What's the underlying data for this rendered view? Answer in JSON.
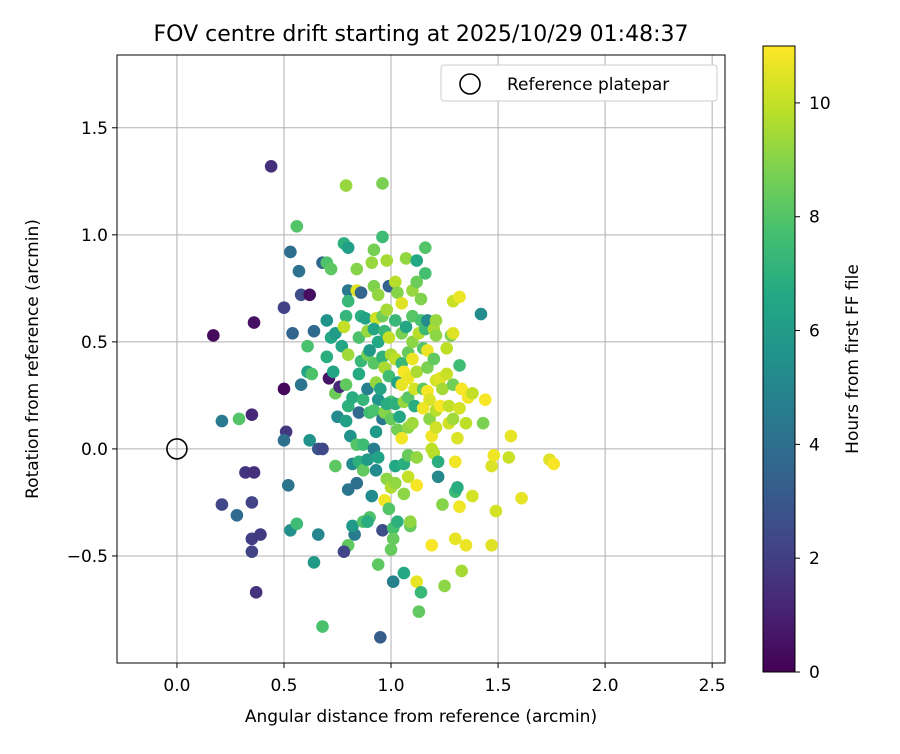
{
  "chart_data": {
    "type": "scatter",
    "title": "FOV centre drift starting at 2025/10/29 01:48:37",
    "xlabel": "Angular distance from reference (arcmin)",
    "ylabel": "Rotation from reference (arcmin)",
    "xlim": [
      -0.28,
      2.56
    ],
    "ylim": [
      -1.0,
      1.84
    ],
    "grid": true,
    "x_ticks": [
      0.0,
      0.5,
      1.0,
      1.5,
      2.0,
      2.5
    ],
    "x_tick_labels": [
      "0.0",
      "0.5",
      "1.0",
      "1.5",
      "2.0",
      "2.5"
    ],
    "y_ticks": [
      -0.5,
      0.0,
      0.5,
      1.0,
      1.5
    ],
    "y_tick_labels": [
      "−0.5",
      "0.0",
      "0.5",
      "1.0",
      "1.5"
    ],
    "legend": {
      "position": "top-right",
      "entries": [
        {
          "label": "Reference platepar",
          "marker": "open-circle"
        }
      ]
    },
    "reference_point": {
      "x": 0.0,
      "y": 0.0
    },
    "colorbar": {
      "label": "Hours from first FF file",
      "colormap": "viridis",
      "range": [
        0,
        11
      ],
      "ticks": [
        0,
        2,
        4,
        6,
        8,
        10
      ],
      "tick_labels": [
        "0",
        "2",
        "4",
        "6",
        "8",
        "10"
      ]
    },
    "points": [
      {
        "x": 0.44,
        "y": 1.32,
        "c": 1.5
      },
      {
        "x": 0.17,
        "y": 0.53,
        "c": 0.3
      },
      {
        "x": 0.36,
        "y": 0.59,
        "c": 0.5
      },
      {
        "x": 0.21,
        "y": 0.13,
        "c": 4.5
      },
      {
        "x": 0.29,
        "y": 0.14,
        "c": 8.0
      },
      {
        "x": 0.35,
        "y": 0.16,
        "c": 1.2
      },
      {
        "x": 0.32,
        "y": -0.11,
        "c": 1.7
      },
      {
        "x": 0.36,
        "y": -0.11,
        "c": 1.5
      },
      {
        "x": 0.21,
        "y": -0.26,
        "c": 2.3
      },
      {
        "x": 0.28,
        "y": -0.31,
        "c": 3.8
      },
      {
        "x": 0.35,
        "y": -0.25,
        "c": 2.2
      },
      {
        "x": 0.35,
        "y": -0.42,
        "c": 2.0
      },
      {
        "x": 0.39,
        "y": -0.4,
        "c": 1.9
      },
      {
        "x": 0.35,
        "y": -0.48,
        "c": 2.2
      },
      {
        "x": 0.37,
        "y": -0.67,
        "c": 1.6
      },
      {
        "x": 0.5,
        "y": 0.28,
        "c": 0.2
      },
      {
        "x": 0.5,
        "y": 0.66,
        "c": 2.1
      },
      {
        "x": 0.51,
        "y": 0.08,
        "c": 1.8
      },
      {
        "x": 0.5,
        "y": 0.04,
        "c": 4.0
      },
      {
        "x": 0.52,
        "y": -0.17,
        "c": 4.2
      },
      {
        "x": 0.53,
        "y": -0.38,
        "c": 5.4
      },
      {
        "x": 0.56,
        "y": -0.35,
        "c": 7.5
      },
      {
        "x": 0.53,
        "y": 0.92,
        "c": 3.9
      },
      {
        "x": 0.56,
        "y": 1.04,
        "c": 8.0
      },
      {
        "x": 0.57,
        "y": 0.83,
        "c": 4.1
      },
      {
        "x": 0.54,
        "y": 0.54,
        "c": 3.5
      },
      {
        "x": 0.58,
        "y": 0.72,
        "c": 2.6
      },
      {
        "x": 0.61,
        "y": 0.48,
        "c": 7.8
      },
      {
        "x": 0.58,
        "y": 0.3,
        "c": 4.3
      },
      {
        "x": 0.61,
        "y": 0.36,
        "c": 6.3
      },
      {
        "x": 0.63,
        "y": 0.35,
        "c": 7.9
      },
      {
        "x": 0.62,
        "y": 0.72,
        "c": 0.4
      },
      {
        "x": 0.64,
        "y": 0.55,
        "c": 3.8
      },
      {
        "x": 0.62,
        "y": 0.04,
        "c": 5.6
      },
      {
        "x": 0.66,
        "y": 0.0,
        "c": 2.9
      },
      {
        "x": 0.68,
        "y": 0.0,
        "c": 2.4
      },
      {
        "x": 0.66,
        "y": -0.4,
        "c": 5.0
      },
      {
        "x": 0.64,
        "y": -0.53,
        "c": 6.0
      },
      {
        "x": 0.68,
        "y": -0.83,
        "c": 7.8
      },
      {
        "x": 0.68,
        "y": 0.87,
        "c": 3.6
      },
      {
        "x": 0.7,
        "y": 0.87,
        "c": 7.9
      },
      {
        "x": 0.72,
        "y": 0.84,
        "c": 8.2
      },
      {
        "x": 0.7,
        "y": 0.6,
        "c": 5.6
      },
      {
        "x": 0.72,
        "y": 0.52,
        "c": 6.6
      },
      {
        "x": 0.74,
        "y": 0.54,
        "c": 6.0
      },
      {
        "x": 0.7,
        "y": 0.43,
        "c": 6.9
      },
      {
        "x": 0.71,
        "y": 0.33,
        "c": 0.6
      },
      {
        "x": 0.73,
        "y": 0.36,
        "c": 6.4
      },
      {
        "x": 0.74,
        "y": 0.26,
        "c": 8.5
      },
      {
        "x": 0.76,
        "y": 0.29,
        "c": 1.3
      },
      {
        "x": 0.75,
        "y": 0.15,
        "c": 5.2
      },
      {
        "x": 0.74,
        "y": -0.08,
        "c": 8.2
      },
      {
        "x": 0.78,
        "y": 0.96,
        "c": 7.0
      },
      {
        "x": 0.8,
        "y": 0.94,
        "c": 6.2
      },
      {
        "x": 0.79,
        "y": 1.23,
        "c": 9.3
      },
      {
        "x": 0.8,
        "y": 0.74,
        "c": 4.4
      },
      {
        "x": 0.8,
        "y": 0.69,
        "c": 7.3
      },
      {
        "x": 0.79,
        "y": 0.62,
        "c": 7.2
      },
      {
        "x": 0.78,
        "y": 0.57,
        "c": 10.0
      },
      {
        "x": 0.77,
        "y": 0.48,
        "c": 6.5
      },
      {
        "x": 0.8,
        "y": 0.44,
        "c": 9.4
      },
      {
        "x": 0.79,
        "y": 0.3,
        "c": 8.3
      },
      {
        "x": 0.8,
        "y": 0.2,
        "c": 7.0
      },
      {
        "x": 0.82,
        "y": 0.24,
        "c": 6.8
      },
      {
        "x": 0.79,
        "y": 0.13,
        "c": 6.2
      },
      {
        "x": 0.81,
        "y": 0.06,
        "c": 5.5
      },
      {
        "x": 0.8,
        "y": -0.19,
        "c": 4.3
      },
      {
        "x": 0.82,
        "y": -0.07,
        "c": 5.3
      },
      {
        "x": 0.8,
        "y": -0.45,
        "c": 8.3
      },
      {
        "x": 0.78,
        "y": -0.48,
        "c": 2.3
      },
      {
        "x": 0.83,
        "y": -0.4,
        "c": 4.5
      },
      {
        "x": 0.82,
        "y": -0.36,
        "c": 5.9
      },
      {
        "x": 0.84,
        "y": -0.16,
        "c": 4.0
      },
      {
        "x": 0.84,
        "y": 0.02,
        "c": 8.0
      },
      {
        "x": 0.85,
        "y": -0.06,
        "c": 7.0
      },
      {
        "x": 0.84,
        "y": 0.84,
        "c": 9.0
      },
      {
        "x": 0.84,
        "y": 0.74,
        "c": 10.5
      },
      {
        "x": 0.86,
        "y": 0.73,
        "c": 3.6
      },
      {
        "x": 0.86,
        "y": 0.62,
        "c": 6.9
      },
      {
        "x": 0.85,
        "y": 0.52,
        "c": 7.9
      },
      {
        "x": 0.86,
        "y": 0.41,
        "c": 7.3
      },
      {
        "x": 0.85,
        "y": 0.35,
        "c": 6.7
      },
      {
        "x": 0.85,
        "y": 0.17,
        "c": 3.8
      },
      {
        "x": 0.87,
        "y": 0.23,
        "c": 7.2
      },
      {
        "x": 0.87,
        "y": 0.02,
        "c": 7.5
      },
      {
        "x": 0.87,
        "y": -0.1,
        "c": 8.3
      },
      {
        "x": 0.87,
        "y": -0.34,
        "c": 8.0
      },
      {
        "x": 0.88,
        "y": 0.61,
        "c": 6.3
      },
      {
        "x": 0.89,
        "y": 0.55,
        "c": 9.3
      },
      {
        "x": 0.89,
        "y": 0.44,
        "c": 8.6
      },
      {
        "x": 0.9,
        "y": 0.46,
        "c": 5.9
      },
      {
        "x": 0.89,
        "y": 0.28,
        "c": 4.7
      },
      {
        "x": 0.9,
        "y": 0.17,
        "c": 7.6
      },
      {
        "x": 0.89,
        "y": -0.05,
        "c": 6.0
      },
      {
        "x": 0.91,
        "y": -0.22,
        "c": 5.2
      },
      {
        "x": 0.9,
        "y": -0.32,
        "c": 7.9
      },
      {
        "x": 0.89,
        "y": -0.34,
        "c": 6.8
      },
      {
        "x": 0.92,
        "y": 0.93,
        "c": 8.7
      },
      {
        "x": 0.91,
        "y": 0.87,
        "c": 9.3
      },
      {
        "x": 0.92,
        "y": 0.76,
        "c": 8.9
      },
      {
        "x": 0.94,
        "y": 0.72,
        "c": 9.2
      },
      {
        "x": 0.93,
        "y": 0.61,
        "c": 10.2
      },
      {
        "x": 0.92,
        "y": 0.56,
        "c": 6.5
      },
      {
        "x": 0.94,
        "y": 0.5,
        "c": 6.6
      },
      {
        "x": 0.92,
        "y": 0.4,
        "c": 8.1
      },
      {
        "x": 0.93,
        "y": 0.31,
        "c": 9.2
      },
      {
        "x": 0.94,
        "y": 0.23,
        "c": 5.7
      },
      {
        "x": 0.92,
        "y": 0.18,
        "c": 7.8
      },
      {
        "x": 0.93,
        "y": 0.08,
        "c": 5.9
      },
      {
        "x": 0.92,
        "y": 0.0,
        "c": 4.6
      },
      {
        "x": 0.94,
        "y": -0.04,
        "c": 6.3
      },
      {
        "x": 0.93,
        "y": -0.1,
        "c": 5.2
      },
      {
        "x": 0.94,
        "y": -0.54,
        "c": 8.2
      },
      {
        "x": 0.95,
        "y": -0.88,
        "c": 3.2
      },
      {
        "x": 0.96,
        "y": 0.99,
        "c": 7.5
      },
      {
        "x": 0.96,
        "y": 1.24,
        "c": 8.8
      },
      {
        "x": 0.96,
        "y": 0.62,
        "c": 8.6
      },
      {
        "x": 0.97,
        "y": 0.55,
        "c": 7.3
      },
      {
        "x": 0.96,
        "y": 0.43,
        "c": 7.1
      },
      {
        "x": 0.97,
        "y": 0.38,
        "c": 9.6
      },
      {
        "x": 0.95,
        "y": 0.28,
        "c": 6.4
      },
      {
        "x": 0.96,
        "y": 0.14,
        "c": 4.5
      },
      {
        "x": 0.97,
        "y": 0.17,
        "c": 9.0
      },
      {
        "x": 0.96,
        "y": -0.38,
        "c": 2.6
      },
      {
        "x": 0.97,
        "y": -0.24,
        "c": 10.8
      },
      {
        "x": 0.98,
        "y": -0.14,
        "c": 9.1
      },
      {
        "x": 0.98,
        "y": 0.88,
        "c": 9.5
      },
      {
        "x": 0.99,
        "y": 0.76,
        "c": 3.4
      },
      {
        "x": 0.98,
        "y": 0.65,
        "c": 9.5
      },
      {
        "x": 0.99,
        "y": 0.52,
        "c": 10.0
      },
      {
        "x": 1.0,
        "y": 0.44,
        "c": 9.6
      },
      {
        "x": 0.99,
        "y": 0.34,
        "c": 7.6
      },
      {
        "x": 1.0,
        "y": 0.22,
        "c": 7.8
      },
      {
        "x": 0.98,
        "y": 0.21,
        "c": 6.8
      },
      {
        "x": 1.0,
        "y": 0.14,
        "c": 8.4
      },
      {
        "x": 0.99,
        "y": -0.28,
        "c": 8.0
      },
      {
        "x": 1.0,
        "y": -0.18,
        "c": 9.7
      },
      {
        "x": 1.01,
        "y": -0.37,
        "c": 7.7
      },
      {
        "x": 1.01,
        "y": -0.42,
        "c": 8.4
      },
      {
        "x": 1.0,
        "y": -0.47,
        "c": 8.4
      },
      {
        "x": 1.01,
        "y": -0.62,
        "c": 4.8
      },
      {
        "x": 1.02,
        "y": 0.78,
        "c": 9.8
      },
      {
        "x": 1.03,
        "y": 0.73,
        "c": 9.0
      },
      {
        "x": 1.02,
        "y": 0.6,
        "c": 7.3
      },
      {
        "x": 1.02,
        "y": 0.42,
        "c": 9.9
      },
      {
        "x": 1.03,
        "y": 0.31,
        "c": 6.3
      },
      {
        "x": 1.02,
        "y": 0.21,
        "c": 7.0
      },
      {
        "x": 1.03,
        "y": 0.09,
        "c": 8.6
      },
      {
        "x": 1.02,
        "y": -0.08,
        "c": 6.6
      },
      {
        "x": 1.02,
        "y": -0.16,
        "c": 9.2
      },
      {
        "x": 1.03,
        "y": -0.34,
        "c": 7.0
      },
      {
        "x": 1.05,
        "y": 0.68,
        "c": 10.5
      },
      {
        "x": 1.05,
        "y": 0.54,
        "c": 8.8
      },
      {
        "x": 1.05,
        "y": 0.4,
        "c": 7.3
      },
      {
        "x": 1.05,
        "y": 0.3,
        "c": 10.6
      },
      {
        "x": 1.06,
        "y": 0.36,
        "c": 10.9
      },
      {
        "x": 1.06,
        "y": 0.22,
        "c": 9.3
      },
      {
        "x": 1.04,
        "y": 0.15,
        "c": 6.5
      },
      {
        "x": 1.05,
        "y": 0.05,
        "c": 10.8
      },
      {
        "x": 1.06,
        "y": -0.07,
        "c": 6.9
      },
      {
        "x": 1.06,
        "y": -0.21,
        "c": 9.1
      },
      {
        "x": 1.06,
        "y": -0.58,
        "c": 6.6
      },
      {
        "x": 1.07,
        "y": 0.89,
        "c": 9.2
      },
      {
        "x": 1.07,
        "y": 0.57,
        "c": 6.5
      },
      {
        "x": 1.08,
        "y": 0.45,
        "c": 8.4
      },
      {
        "x": 1.08,
        "y": 0.33,
        "c": 10.7
      },
      {
        "x": 1.08,
        "y": 0.24,
        "c": 8.1
      },
      {
        "x": 1.08,
        "y": 0.1,
        "c": 9.2
      },
      {
        "x": 1.08,
        "y": -0.03,
        "c": 8.4
      },
      {
        "x": 1.08,
        "y": -0.13,
        "c": 10.0
      },
      {
        "x": 1.09,
        "y": -0.36,
        "c": 8.4
      },
      {
        "x": 1.09,
        "y": -0.34,
        "c": 9.2
      },
      {
        "x": 1.1,
        "y": 0.74,
        "c": 9.3
      },
      {
        "x": 1.1,
        "y": 0.62,
        "c": 8.1
      },
      {
        "x": 1.1,
        "y": 0.5,
        "c": 9.1
      },
      {
        "x": 1.1,
        "y": 0.42,
        "c": 10.7
      },
      {
        "x": 1.11,
        "y": 0.28,
        "c": 10.3
      },
      {
        "x": 1.1,
        "y": 0.12,
        "c": 9.4
      },
      {
        "x": 1.11,
        "y": 0.2,
        "c": 6.8
      },
      {
        "x": 1.12,
        "y": 0.88,
        "c": 6.6
      },
      {
        "x": 1.12,
        "y": 0.78,
        "c": 8.5
      },
      {
        "x": 1.12,
        "y": 0.36,
        "c": 9.6
      },
      {
        "x": 1.13,
        "y": 0.54,
        "c": 9.8
      },
      {
        "x": 1.12,
        "y": -0.04,
        "c": 9.2
      },
      {
        "x": 1.12,
        "y": -0.17,
        "c": 10.9
      },
      {
        "x": 1.12,
        "y": -0.62,
        "c": 10.6
      },
      {
        "x": 1.13,
        "y": -0.76,
        "c": 8.3
      },
      {
        "x": 1.14,
        "y": 0.7,
        "c": 8.9
      },
      {
        "x": 1.14,
        "y": 0.6,
        "c": 7.8
      },
      {
        "x": 1.15,
        "y": 0.47,
        "c": 8.0
      },
      {
        "x": 1.15,
        "y": 0.28,
        "c": 8.2
      },
      {
        "x": 1.15,
        "y": 0.19,
        "c": 10.8
      },
      {
        "x": 1.14,
        "y": -0.67,
        "c": 7.3
      },
      {
        "x": 1.16,
        "y": 0.94,
        "c": 8.0
      },
      {
        "x": 1.16,
        "y": 0.82,
        "c": 7.7
      },
      {
        "x": 1.16,
        "y": 0.56,
        "c": 7.4
      },
      {
        "x": 1.17,
        "y": 0.6,
        "c": 5.2
      },
      {
        "x": 1.17,
        "y": 0.46,
        "c": 10.7
      },
      {
        "x": 1.17,
        "y": 0.38,
        "c": 8.8
      },
      {
        "x": 1.17,
        "y": 0.27,
        "c": 10.9
      },
      {
        "x": 1.18,
        "y": 0.23,
        "c": 10.4
      },
      {
        "x": 1.18,
        "y": 0.14,
        "c": 9.1
      },
      {
        "x": 1.19,
        "y": 0.06,
        "c": 10.8
      },
      {
        "x": 1.19,
        "y": 0.0,
        "c": 9.9
      },
      {
        "x": 1.19,
        "y": -0.45,
        "c": 10.9
      },
      {
        "x": 1.2,
        "y": 0.56,
        "c": 9.6
      },
      {
        "x": 1.2,
        "y": 0.42,
        "c": 8.3
      },
      {
        "x": 1.21,
        "y": 0.6,
        "c": 9.3
      },
      {
        "x": 1.21,
        "y": 0.53,
        "c": 9.1
      },
      {
        "x": 1.21,
        "y": 0.32,
        "c": 10.3
      },
      {
        "x": 1.21,
        "y": 0.18,
        "c": 9.8
      },
      {
        "x": 1.21,
        "y": 0.1,
        "c": 10.2
      },
      {
        "x": 1.2,
        "y": -0.02,
        "c": 9.8
      },
      {
        "x": 1.22,
        "y": -0.06,
        "c": 6.9
      },
      {
        "x": 1.22,
        "y": -0.13,
        "c": 5.1
      },
      {
        "x": 1.23,
        "y": 0.33,
        "c": 10.5
      },
      {
        "x": 1.23,
        "y": 0.2,
        "c": 10.9
      },
      {
        "x": 1.24,
        "y": 0.28,
        "c": 9.5
      },
      {
        "x": 1.24,
        "y": -0.26,
        "c": 9.0
      },
      {
        "x": 1.25,
        "y": -0.64,
        "c": 9.1
      },
      {
        "x": 1.26,
        "y": 0.47,
        "c": 9.9
      },
      {
        "x": 1.26,
        "y": 0.35,
        "c": 10.1
      },
      {
        "x": 1.27,
        "y": 0.2,
        "c": 10.0
      },
      {
        "x": 1.27,
        "y": 0.12,
        "c": 10.2
      },
      {
        "x": 1.28,
        "y": 0.53,
        "c": 8.8
      },
      {
        "x": 1.29,
        "y": 0.54,
        "c": 10.5
      },
      {
        "x": 1.29,
        "y": 0.69,
        "c": 10.1
      },
      {
        "x": 1.29,
        "y": 0.3,
        "c": 8.6
      },
      {
        "x": 1.29,
        "y": 0.14,
        "c": 9.4
      },
      {
        "x": 1.3,
        "y": -0.06,
        "c": 10.8
      },
      {
        "x": 1.3,
        "y": -0.2,
        "c": 7.4
      },
      {
        "x": 1.3,
        "y": -0.42,
        "c": 10.6
      },
      {
        "x": 1.31,
        "y": 0.05,
        "c": 10.4
      },
      {
        "x": 1.31,
        "y": -0.18,
        "c": 6.8
      },
      {
        "x": 1.32,
        "y": 0.71,
        "c": 10.7
      },
      {
        "x": 1.32,
        "y": 0.39,
        "c": 7.5
      },
      {
        "x": 1.32,
        "y": 0.19,
        "c": 10.3
      },
      {
        "x": 1.32,
        "y": -0.27,
        "c": 10.8
      },
      {
        "x": 1.33,
        "y": -0.57,
        "c": 9.5
      },
      {
        "x": 1.33,
        "y": 0.28,
        "c": 10.9
      },
      {
        "x": 1.35,
        "y": 0.12,
        "c": 9.9
      },
      {
        "x": 1.35,
        "y": -0.45,
        "c": 10.7
      },
      {
        "x": 1.36,
        "y": 0.24,
        "c": 10.8
      },
      {
        "x": 1.38,
        "y": 0.26,
        "c": 10.0
      },
      {
        "x": 1.38,
        "y": -0.22,
        "c": 10.3
      },
      {
        "x": 1.42,
        "y": 0.63,
        "c": 5.3
      },
      {
        "x": 1.43,
        "y": 0.12,
        "c": 8.8
      },
      {
        "x": 1.44,
        "y": 0.23,
        "c": 10.9
      },
      {
        "x": 1.47,
        "y": -0.45,
        "c": 10.5
      },
      {
        "x": 1.47,
        "y": -0.08,
        "c": 10.4
      },
      {
        "x": 1.48,
        "y": -0.03,
        "c": 10.8
      },
      {
        "x": 1.49,
        "y": -0.29,
        "c": 10.3
      },
      {
        "x": 1.55,
        "y": -0.04,
        "c": 10.1
      },
      {
        "x": 1.56,
        "y": 0.06,
        "c": 10.6
      },
      {
        "x": 1.61,
        "y": -0.23,
        "c": 10.6
      },
      {
        "x": 1.74,
        "y": -0.05,
        "c": 10.5
      },
      {
        "x": 1.76,
        "y": -0.07,
        "c": 10.9
      }
    ]
  }
}
